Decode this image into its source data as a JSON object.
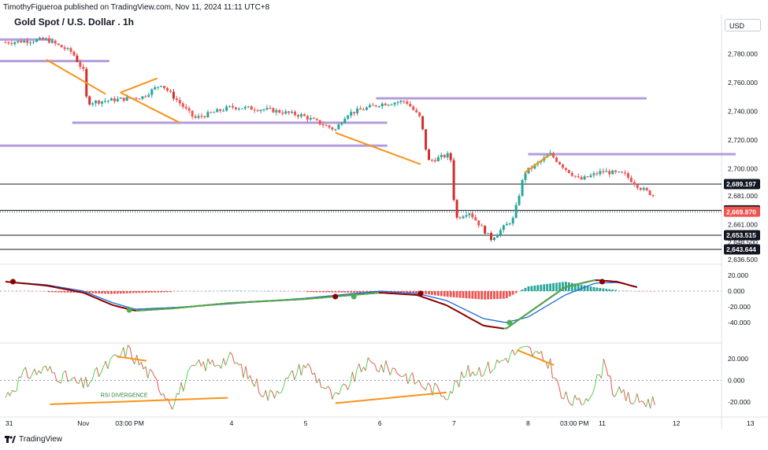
{
  "header": {
    "published": "TimothyFigueroa published on TradingView.com, Nov 11, 2024 11:11 UTC+8",
    "title": "Gold Spot / U.S. Dollar . 1h",
    "currency": "USD"
  },
  "footer": {
    "brand": "TradingView"
  },
  "colors": {
    "up": "#26a69a",
    "down": "#ef5350",
    "down_strong": "#d32f2f",
    "support": "#b39ddb",
    "trendline": "#f7931a",
    "macd_line": "#4caf50",
    "signal_line": "#1e6bd6",
    "signal_dark": "#8b0000",
    "rsi_up": "#57d157",
    "rsi_down": "#ef5350"
  },
  "chart_data": [
    {
      "type": "candlestick",
      "title": "Gold Spot / U.S. Dollar . 1h",
      "ylim": [
        2636.5,
        2800
      ],
      "y_ticks": [
        2780,
        2760,
        2740,
        2720,
        2700,
        2681,
        2661,
        2648.5,
        2636.5
      ],
      "y_tick_labels": [
        "2,780.000",
        "2,760.000",
        "2,740.000",
        "2,720.000",
        "2,700.000",
        "2,681.000",
        "2,661.000",
        "2,648.500",
        "2,636.500"
      ],
      "price_labels": [
        {
          "label": "2,689.197",
          "value": 2689.197,
          "style": "dark"
        },
        {
          "label": "2,670.882",
          "value": 2670.882,
          "style": "dark"
        },
        {
          "label": "2,669.870",
          "value": 2669.87,
          "style": "red"
        },
        {
          "label": "2,653.515",
          "value": 2653.515,
          "style": "dark"
        },
        {
          "label": "2,643.644",
          "value": 2643.644,
          "style": "dark"
        }
      ],
      "horizontal_lines": [
        2689.197,
        2670.882,
        2653.515,
        2643.644
      ],
      "current_price": 2669.87,
      "support_zones": [
        {
          "from_day": 30.85,
          "to_day": 31.6,
          "value": 2790
        },
        {
          "from_day": 30.85,
          "to_day": 32.35,
          "value": 2775
        },
        {
          "from_day": 31.85,
          "to_day": 36.1,
          "value": 2732
        },
        {
          "from_day": 30.85,
          "to_day": 36.1,
          "value": 2716
        },
        {
          "from_day": 35.95,
          "to_day": 39.6,
          "value": 2749
        },
        {
          "from_day": 38.0,
          "to_day": 40.8,
          "value": 2710
        }
      ],
      "trendlines": [
        [
          {
            "day": 31.5,
            "value": 2776
          },
          {
            "day": 32.3,
            "value": 2752
          }
        ],
        [
          {
            "day": 32.5,
            "value": 2753
          },
          {
            "day": 33.0,
            "value": 2763
          }
        ],
        [
          {
            "day": 32.5,
            "value": 2753
          },
          {
            "day": 33.3,
            "value": 2732
          }
        ],
        [
          {
            "day": 35.4,
            "value": 2725
          },
          {
            "day": 36.55,
            "value": 2703
          }
        ],
        [
          {
            "day": 37.95,
            "value": 2697
          },
          {
            "day": 38.3,
            "value": 2710
          }
        ]
      ],
      "price_path": [
        [
          30.95,
          2788
        ],
        [
          31.5,
          2790
        ],
        [
          31.85,
          2781
        ],
        [
          32.0,
          2768
        ],
        [
          32.05,
          2746
        ],
        [
          32.8,
          2750
        ],
        [
          33.05,
          2759
        ],
        [
          33.5,
          2735
        ],
        [
          34.0,
          2743
        ],
        [
          34.5,
          2741
        ],
        [
          34.95,
          2737
        ],
        [
          35.4,
          2727
        ],
        [
          35.55,
          2738
        ],
        [
          36.0,
          2745
        ],
        [
          36.35,
          2747
        ],
        [
          36.55,
          2735
        ],
        [
          36.65,
          2705
        ],
        [
          36.95,
          2710
        ],
        [
          37.02,
          2665
        ],
        [
          37.2,
          2670
        ],
        [
          37.5,
          2651
        ],
        [
          37.8,
          2665
        ],
        [
          37.95,
          2697
        ],
        [
          38.3,
          2710
        ],
        [
          38.5,
          2700
        ],
        [
          38.7,
          2692
        ],
        [
          39.0,
          2698
        ],
        [
          39.3,
          2696
        ],
        [
          39.5,
          2687
        ],
        [
          39.7,
          2681
        ],
        [
          39.72,
          2670
        ]
      ],
      "x_ticks": [
        {
          "label": "31",
          "day": 31.0
        },
        {
          "label": "Nov",
          "day": 32.0
        },
        {
          "label": "03:00 PM",
          "day": 32.625
        },
        {
          "label": "4",
          "day": 34.0
        },
        {
          "label": "5",
          "day": 35.0
        },
        {
          "label": "6",
          "day": 36.0
        },
        {
          "label": "7",
          "day": 37.0
        },
        {
          "label": "8",
          "day": 38.0
        },
        {
          "label": "03:00 PM",
          "day": 38.625
        },
        {
          "label": "11",
          "day": 39.0
        },
        {
          "label": "12",
          "day": 40.0
        },
        {
          "label": "13",
          "day": 41.0
        }
      ]
    },
    {
      "type": "line",
      "name": "MACD",
      "ylim": [
        -60,
        30
      ],
      "y_ticks": [
        20,
        0,
        -20,
        -40
      ],
      "y_tick_labels": [
        "20.000",
        "0.000",
        "-20.000",
        "-40.000"
      ],
      "macd_line": [
        [
          30.95,
          12
        ],
        [
          31.5,
          7
        ],
        [
          32.0,
          -2
        ],
        [
          32.4,
          -18
        ],
        [
          32.7,
          -25
        ],
        [
          33.2,
          -22
        ],
        [
          34.0,
          -15
        ],
        [
          35.0,
          -10
        ],
        [
          36.0,
          -2
        ],
        [
          36.5,
          -5
        ],
        [
          36.9,
          -18
        ],
        [
          37.4,
          -44
        ],
        [
          37.7,
          -48
        ],
        [
          38.0,
          -28
        ],
        [
          38.5,
          5
        ],
        [
          38.9,
          14
        ],
        [
          39.2,
          12
        ],
        [
          39.5,
          4
        ]
      ],
      "signal_line": [
        [
          30.95,
          12
        ],
        [
          31.5,
          8
        ],
        [
          32.0,
          0
        ],
        [
          32.4,
          -15
        ],
        [
          32.7,
          -23
        ],
        [
          33.2,
          -21
        ],
        [
          34.0,
          -16
        ],
        [
          35.0,
          -9
        ],
        [
          36.0,
          0
        ],
        [
          36.5,
          -3
        ],
        [
          36.9,
          -12
        ],
        [
          37.4,
          -35
        ],
        [
          37.7,
          -40
        ],
        [
          38.0,
          -33
        ],
        [
          38.5,
          -5
        ],
        [
          38.9,
          10
        ],
        [
          39.2,
          11
        ],
        [
          39.5,
          5
        ]
      ],
      "cross_markers": [
        {
          "day": 31.05,
          "value": 12,
          "color": "#8b0000"
        },
        {
          "day": 32.62,
          "value": -24,
          "color": "#4caf50"
        },
        {
          "day": 35.4,
          "value": -7,
          "color": "#8b0000"
        },
        {
          "day": 35.65,
          "value": -7,
          "color": "#4caf50"
        },
        {
          "day": 36.55,
          "value": -3,
          "color": "#8b0000"
        },
        {
          "day": 37.75,
          "value": -40,
          "color": "#4caf50"
        },
        {
          "day": 39.0,
          "value": 12,
          "color": "#8b0000"
        }
      ]
    },
    {
      "type": "line",
      "name": "RSI",
      "ylim": [
        -30,
        30
      ],
      "y_ticks": [
        20,
        0,
        -20
      ],
      "y_tick_labels": [
        "20.000",
        "0.000",
        "-20.000"
      ],
      "annotations": [
        {
          "text": "RSI DIVERGENCE",
          "day": 32.55,
          "value": -15
        }
      ],
      "divergence_lines": [
        [
          {
            "day": 32.45,
            "value": 22
          },
          {
            "day": 32.85,
            "value": 18
          }
        ],
        [
          {
            "day": 31.55,
            "value": -22
          },
          {
            "day": 33.95,
            "value": -16
          }
        ],
        [
          {
            "day": 35.4,
            "value": -21
          },
          {
            "day": 36.9,
            "value": -11
          }
        ],
        [
          {
            "day": 37.85,
            "value": 28
          },
          {
            "day": 38.35,
            "value": 14
          }
        ]
      ],
      "rsi_anchors": [
        [
          30.95,
          -15
        ],
        [
          31.2,
          5
        ],
        [
          31.5,
          10
        ],
        [
          32.0,
          -5
        ],
        [
          32.4,
          18
        ],
        [
          32.6,
          28
        ],
        [
          32.9,
          5
        ],
        [
          33.2,
          -20
        ],
        [
          33.5,
          12
        ],
        [
          34.0,
          20
        ],
        [
          34.5,
          -15
        ],
        [
          35.0,
          15
        ],
        [
          35.4,
          -18
        ],
        [
          35.8,
          15
        ],
        [
          36.2,
          10
        ],
        [
          36.6,
          -5
        ],
        [
          36.9,
          -12
        ],
        [
          37.2,
          8
        ],
        [
          37.5,
          12
        ],
        [
          37.8,
          25
        ],
        [
          38.0,
          28
        ],
        [
          38.3,
          15
        ],
        [
          38.45,
          -15
        ],
        [
          38.7,
          -22
        ],
        [
          38.9,
          -5
        ],
        [
          39.05,
          18
        ],
        [
          39.15,
          -10
        ],
        [
          39.4,
          -18
        ],
        [
          39.7,
          -20
        ]
      ]
    }
  ]
}
